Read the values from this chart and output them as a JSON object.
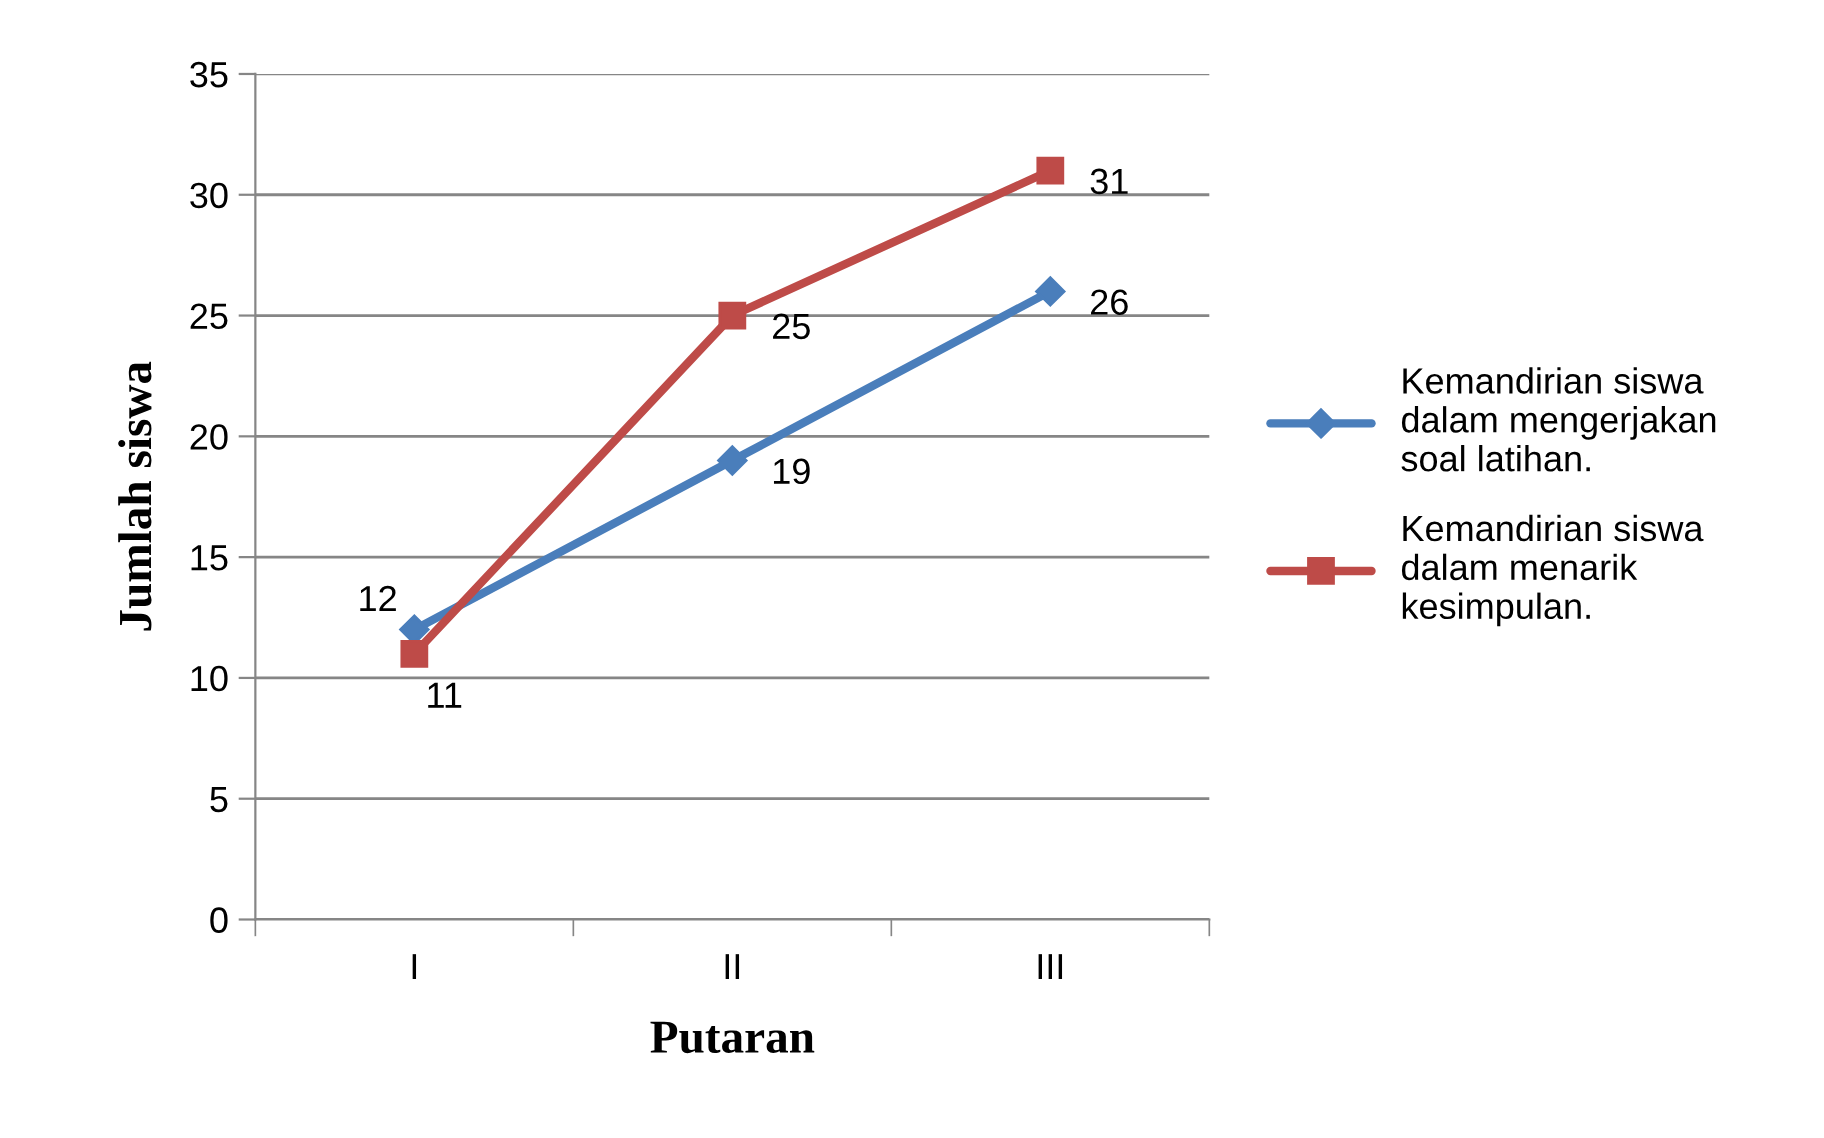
{
  "chart_data": {
    "type": "line",
    "xlabel": "Putaran",
    "ylabel": "Jumlah siswa",
    "categories": [
      "I",
      "II",
      "III"
    ],
    "series": [
      {
        "name": "Kemandirian siswa dalam mengerjakan soal latihan.",
        "color": "#4a7ebb",
        "marker": "diamond",
        "values": [
          12,
          19,
          26
        ]
      },
      {
        "name": "Kemandirian siswa dalam menarik kesimpulan.",
        "color": "#be4b48",
        "marker": "square",
        "values": [
          11,
          25,
          31
        ]
      }
    ],
    "ylim": [
      0,
      35
    ],
    "yticks": [
      0,
      5,
      10,
      15,
      20,
      25,
      30,
      35
    ],
    "grid": "y",
    "legend": "right",
    "data_labels": true,
    "line_style": "solid"
  }
}
